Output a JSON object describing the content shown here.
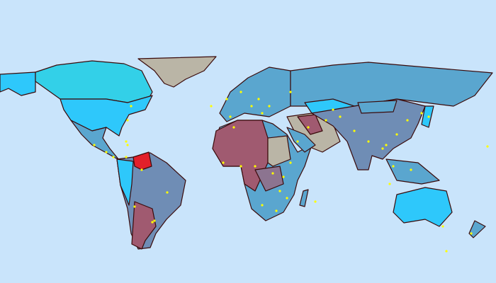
{
  "map": {
    "type": "choropleth world map",
    "has_capital_markers": true,
    "colors": {
      "ocean": "#c9e4fb",
      "border": "#3a0a0a",
      "bright_cyan": "#2ec8fb",
      "aqua": "#33d0e8",
      "steel_blue": "#5aa6cf",
      "slate_blue": "#6f8db5",
      "mauve": "#a05a70",
      "grey_purple": "#8c7490",
      "tan": "#bab5a6",
      "highlight_red": "#e2202a",
      "capital_marker": "#ffff00"
    },
    "highlighted_region": "Venezuela"
  }
}
